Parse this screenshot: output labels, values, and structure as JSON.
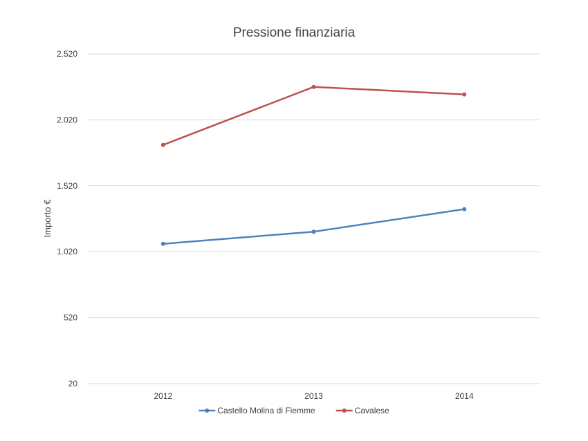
{
  "chart_data": {
    "type": "line",
    "title": "Pressione finanziaria",
    "xlabel": "",
    "ylabel": "Importo €",
    "categories": [
      "2012",
      "2013",
      "2014"
    ],
    "yticks": [
      20,
      520,
      1020,
      1520,
      2020,
      2520
    ],
    "ytick_labels": [
      "20",
      "520",
      "1.020",
      "1.520",
      "2.020",
      "2.520"
    ],
    "ylim": [
      20,
      2520
    ],
    "grid": true,
    "legend_position": "bottom",
    "series": [
      {
        "name": "Castello Molina di Fiemme",
        "color": "#4f81bd",
        "values": [
          1080,
          1172,
          1343
        ]
      },
      {
        "name": "Cavalese",
        "color": "#c0504d",
        "values": [
          1830,
          2270,
          2213
        ]
      }
    ]
  }
}
